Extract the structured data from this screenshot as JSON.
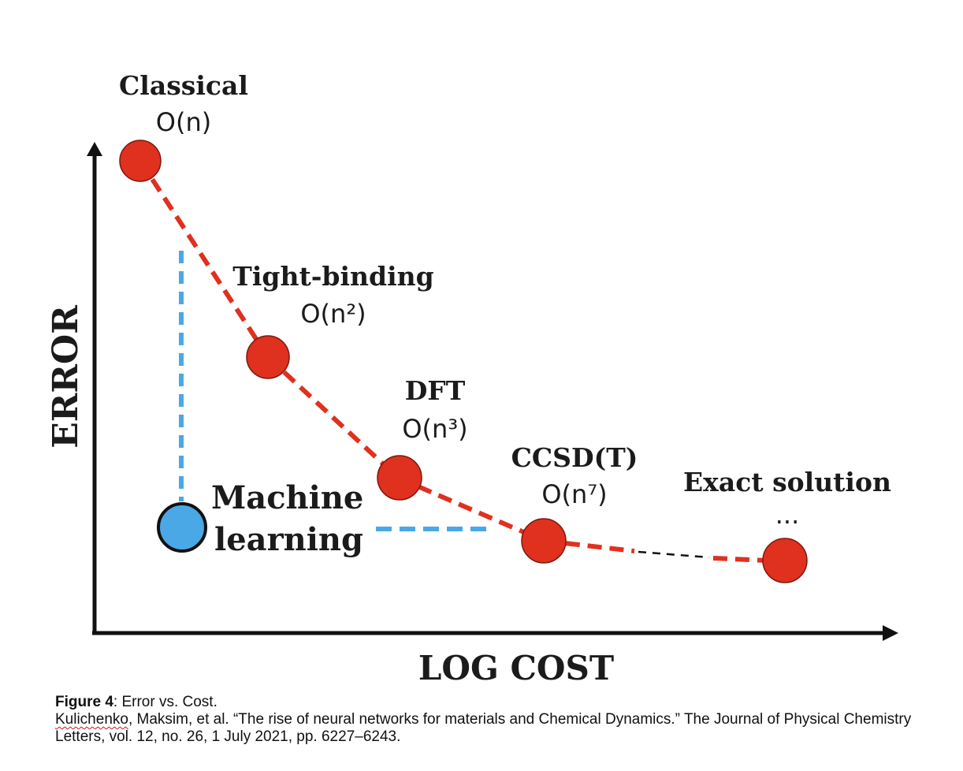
{
  "diagram": {
    "axes": {
      "y_label": "ERROR",
      "x_label": "LOG COST"
    },
    "methods": [
      {
        "name": "Classical",
        "complexity": "O(n)"
      },
      {
        "name": "Tight-binding",
        "complexity": "O(n²)"
      },
      {
        "name": "DFT",
        "complexity": "O(n³)"
      },
      {
        "name": "CCSD(T)",
        "complexity": "O(n⁷)"
      },
      {
        "name": "Exact solution",
        "complexity": "..."
      }
    ],
    "machine_learning": {
      "line1": "Machine",
      "line2": "learning"
    },
    "colors": {
      "method_point": "#e0301e",
      "ml_point": "#4aa8e6",
      "trend_line": "#e0301e",
      "ml_guide": "#4aa8e6",
      "axis": "#111111"
    }
  },
  "caption": {
    "figure_label": "Figure 4",
    "figure_title": ": Error vs. Cost.",
    "citation_author": "Kulichenko",
    "citation_rest": ", Maksim, et al. “The rise of neural networks for materials and Chemical Dynamics.” The Journal of Physical Chemistry Letters, vol. 12, no. 26, 1 July 2021, pp. 6227–6243."
  }
}
